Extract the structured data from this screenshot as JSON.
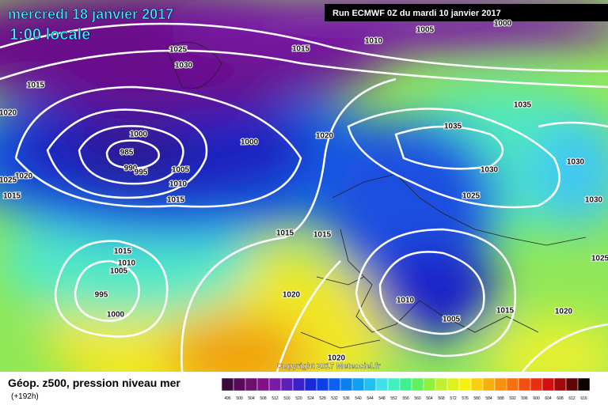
{
  "header": {
    "title": "mercredi 18 janvier 2017",
    "subtitle": "1:00 locale",
    "run": "Run ECMWF 0Z du mardi 10 janvier 2017"
  },
  "copyright": "Copyright 2017 Meteociel.fr",
  "footer": {
    "title": "Géop. z500, pression niveau mer",
    "lead": "(+192h)"
  },
  "isobar_labels": [
    "1025",
    "1030",
    "1015",
    "1020",
    "1000",
    "985",
    "990",
    "995",
    "1005",
    "1010",
    "1015",
    "1020",
    "1025",
    "1015",
    "1000",
    "1020",
    "1010",
    "1005",
    "1000",
    "1015",
    "1035",
    "1035",
    "1030",
    "1030",
    "1025",
    "1030",
    "1015",
    "1015",
    "1015",
    "1010",
    "1005",
    "995",
    "1000",
    "1020",
    "1010",
    "1005",
    "1015",
    "1020",
    "1020",
    "1025"
  ],
  "scale": {
    "labels": [
      496,
      500,
      504,
      508,
      512,
      516,
      520,
      524,
      528,
      532,
      536,
      540,
      544,
      548,
      552,
      556,
      560,
      564,
      568,
      572,
      576,
      580,
      584,
      588,
      592,
      596,
      600,
      604,
      608,
      612,
      616
    ],
    "colors": [
      "#3a0a3a",
      "#5a0a5a",
      "#6e0f6e",
      "#800f88",
      "#7a1aa8",
      "#5c1fb8",
      "#3a20c8",
      "#1a28d8",
      "#0a40e8",
      "#0a60f0",
      "#0a80f0",
      "#10a0f0",
      "#20c0f0",
      "#40e0e8",
      "#40f0c0",
      "#40f090",
      "#60f060",
      "#90f040",
      "#c0f030",
      "#e0f020",
      "#f8f010",
      "#f8d010",
      "#f8b010",
      "#f89010",
      "#f87010",
      "#f05010",
      "#e83010",
      "#d01010",
      "#a00a0a",
      "#600505",
      "#100000"
    ]
  }
}
